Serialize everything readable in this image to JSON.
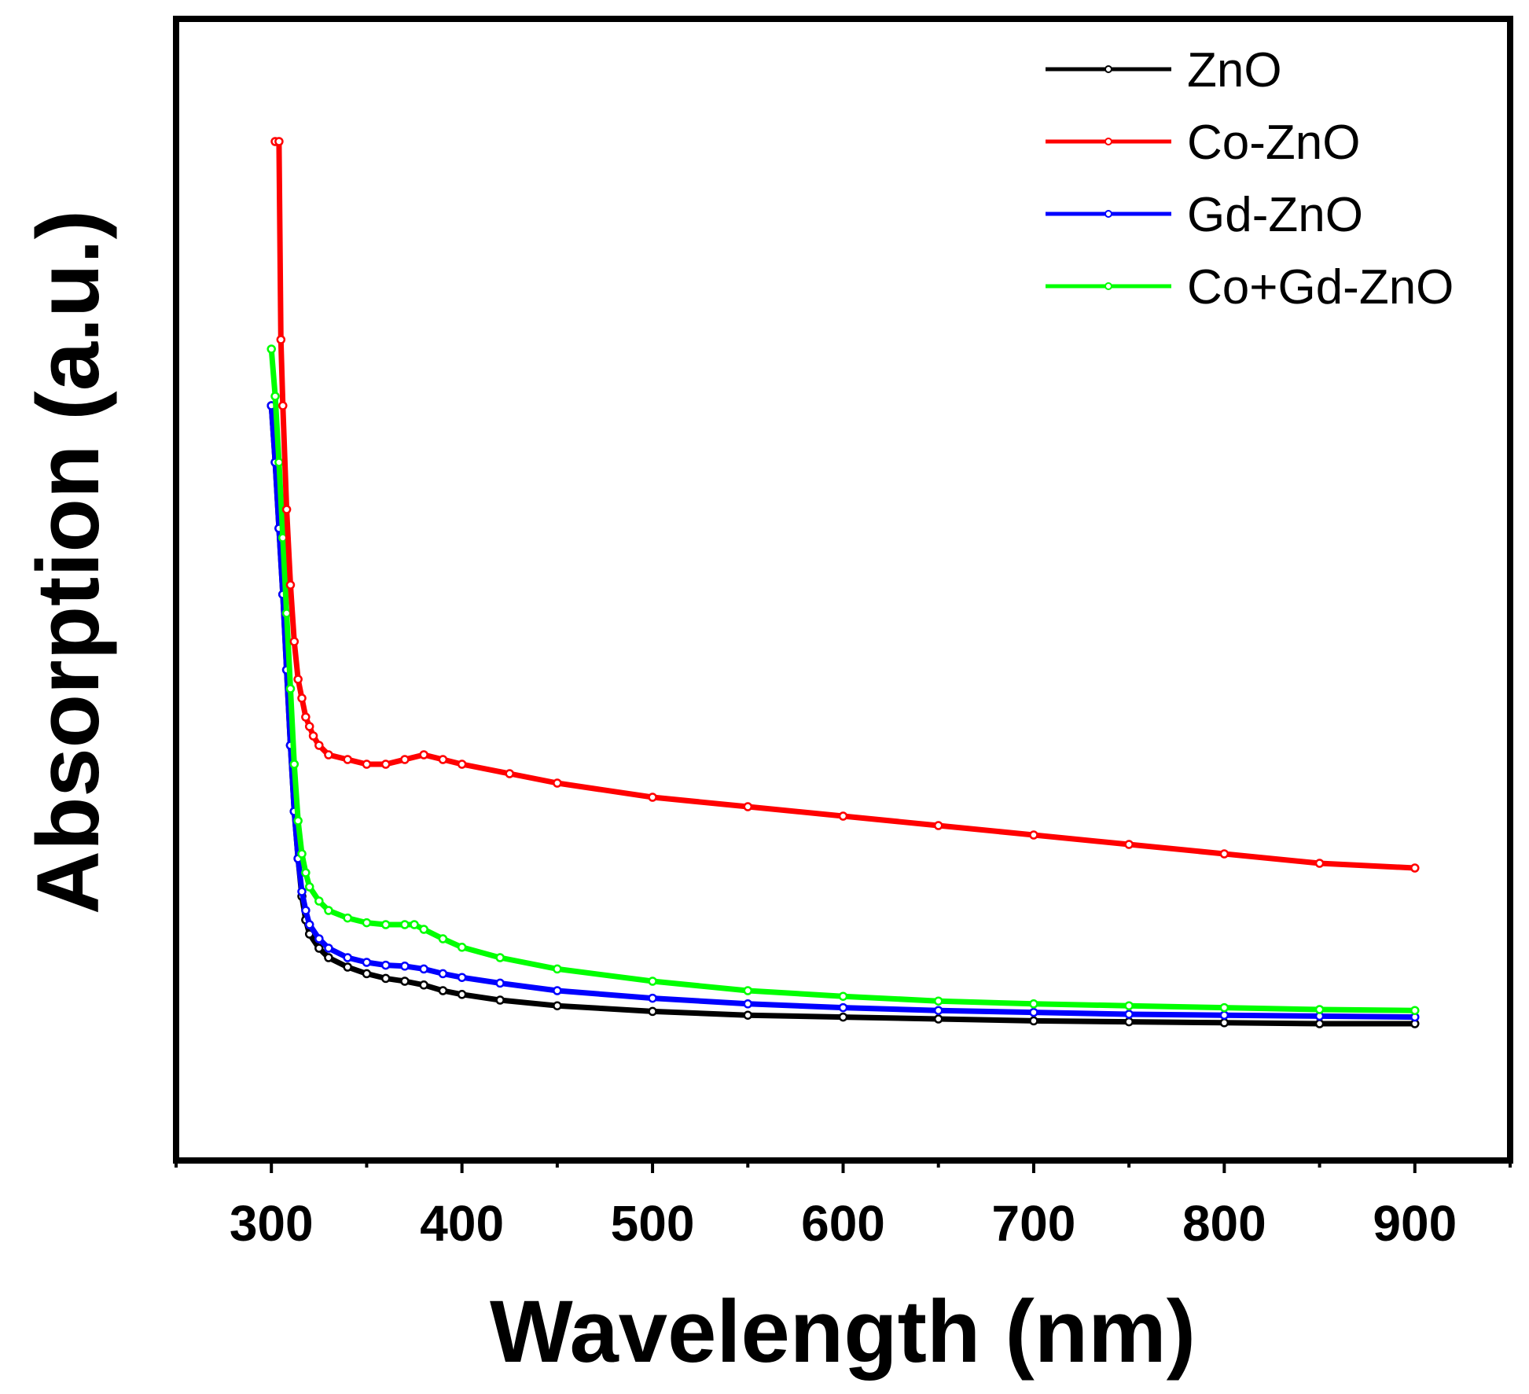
{
  "chart_data": {
    "type": "line",
    "xlabel": "Wavelength (nm)",
    "ylabel": "Absorption (a.u.)",
    "xlim": [
      250,
      950
    ],
    "ylim": [
      0,
      1.0
    ],
    "x_ticks": [
      300,
      400,
      500,
      600,
      700,
      800,
      900
    ],
    "y_ticks_shown": false,
    "grid": false,
    "legend_position": "top-right",
    "series": [
      {
        "name": "ZnO",
        "color": "#000000",
        "x": [
          300,
          302,
          304,
          306,
          308,
          310,
          312,
          314,
          316,
          318,
          320,
          325,
          330,
          340,
          350,
          360,
          370,
          380,
          390,
          400,
          420,
          450,
          500,
          550,
          600,
          650,
          700,
          750,
          800,
          850,
          900
        ],
        "y": [
          0.72,
          0.66,
          0.59,
          0.52,
          0.44,
          0.36,
          0.29,
          0.24,
          0.2,
          0.175,
          0.16,
          0.145,
          0.135,
          0.125,
          0.118,
          0.113,
          0.11,
          0.106,
          0.1,
          0.096,
          0.09,
          0.084,
          0.078,
          0.074,
          0.072,
          0.07,
          0.068,
          0.067,
          0.066,
          0.065,
          0.065
        ]
      },
      {
        "name": "Co-ZnO",
        "color": "#ff0000",
        "x": [
          302,
          304,
          305,
          306,
          308,
          310,
          312,
          314,
          316,
          318,
          320,
          322,
          325,
          330,
          340,
          350,
          360,
          370,
          380,
          390,
          400,
          425,
          450,
          500,
          550,
          600,
          650,
          700,
          750,
          800,
          850,
          900
        ],
        "y": [
          1.0,
          1.0,
          0.79,
          0.72,
          0.61,
          0.53,
          0.47,
          0.43,
          0.41,
          0.39,
          0.38,
          0.37,
          0.36,
          0.35,
          0.345,
          0.34,
          0.34,
          0.345,
          0.35,
          0.345,
          0.34,
          0.33,
          0.32,
          0.305,
          0.295,
          0.285,
          0.275,
          0.265,
          0.255,
          0.245,
          0.235,
          0.23
        ]
      },
      {
        "name": "Gd-ZnO",
        "color": "#0000ff",
        "x": [
          300,
          302,
          304,
          306,
          308,
          310,
          312,
          314,
          316,
          318,
          320,
          325,
          330,
          340,
          350,
          360,
          370,
          380,
          390,
          400,
          420,
          450,
          500,
          550,
          600,
          650,
          700,
          750,
          800,
          850,
          900
        ],
        "y": [
          0.72,
          0.66,
          0.59,
          0.52,
          0.44,
          0.36,
          0.29,
          0.24,
          0.205,
          0.185,
          0.17,
          0.155,
          0.145,
          0.135,
          0.13,
          0.127,
          0.126,
          0.123,
          0.118,
          0.114,
          0.108,
          0.1,
          0.092,
          0.086,
          0.082,
          0.079,
          0.077,
          0.075,
          0.074,
          0.073,
          0.072
        ]
      },
      {
        "name": "Co+Gd-ZnO",
        "color": "#00ff00",
        "x": [
          300,
          302,
          304,
          306,
          308,
          310,
          312,
          314,
          316,
          318,
          320,
          325,
          330,
          340,
          350,
          360,
          370,
          375,
          380,
          390,
          400,
          420,
          450,
          500,
          550,
          600,
          650,
          700,
          750,
          800,
          850,
          900
        ],
        "y": [
          0.78,
          0.73,
          0.66,
          0.58,
          0.5,
          0.42,
          0.34,
          0.28,
          0.245,
          0.225,
          0.21,
          0.195,
          0.185,
          0.177,
          0.172,
          0.17,
          0.17,
          0.17,
          0.165,
          0.155,
          0.146,
          0.135,
          0.123,
          0.11,
          0.1,
          0.094,
          0.089,
          0.086,
          0.084,
          0.082,
          0.08,
          0.079
        ]
      }
    ]
  }
}
